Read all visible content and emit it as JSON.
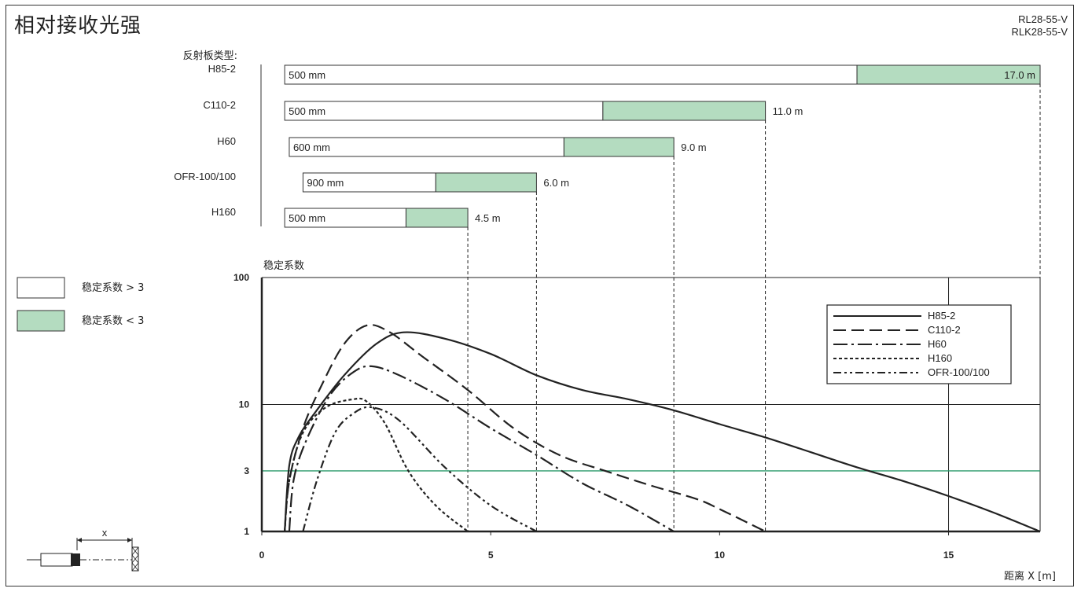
{
  "title": "相对接收光强",
  "models": [
    "RL28-55-V",
    "RLK28-55-V"
  ],
  "reflector_header": "反射板类型:",
  "colors": {
    "stable_fill": "#ffffff",
    "unstable_fill": "#b4dcc0",
    "threshold_line": "#2a9a6a",
    "line": "#222222"
  },
  "reflectors": [
    {
      "name": "H85-2",
      "min_label": "500 mm",
      "min_m": 0.5,
      "stable_end_m": 13.0,
      "max_m": 17.0,
      "max_label": "17.0 m"
    },
    {
      "name": "C110-2",
      "min_label": "500 mm",
      "min_m": 0.5,
      "stable_end_m": 7.45,
      "max_m": 11.0,
      "max_label": "11.0 m"
    },
    {
      "name": "H60",
      "min_label": "600 mm",
      "min_m": 0.6,
      "stable_end_m": 6.6,
      "max_m": 9.0,
      "max_label": "9.0 m"
    },
    {
      "name": "OFR-100/100",
      "min_label": "900 mm",
      "min_m": 0.9,
      "stable_end_m": 3.8,
      "max_m": 6.0,
      "max_label": "6.0 m"
    },
    {
      "name": "H160",
      "min_label": "500 mm",
      "min_m": 0.5,
      "stable_end_m": 3.15,
      "max_m": 4.5,
      "max_label": "4.5 m"
    }
  ],
  "legend_boxes": [
    {
      "label": "稳定系数 > 3",
      "kind": "stable"
    },
    {
      "label": "稳定系数 < 3",
      "kind": "unstable"
    }
  ],
  "chart_data": {
    "type": "line",
    "ylabel": "稳定系数",
    "xlabel": "距离 X [m]",
    "xlim": [
      0,
      17
    ],
    "ylim": [
      1,
      100
    ],
    "yscale": "log",
    "xticks": [
      0,
      5,
      10,
      15
    ],
    "yticks": [
      100,
      10,
      3,
      1
    ],
    "threshold": 3,
    "grid": "x=15, x=17, y=10",
    "legend_position": "top-right",
    "series": [
      {
        "name": "H85-2",
        "style": "solid",
        "x": [
          0.5,
          0.6,
          0.8,
          1.2,
          1.8,
          2.5,
          3.1,
          4.0,
          5.0,
          6.0,
          7.0,
          8.0,
          9.0,
          10.0,
          11.0,
          12.0,
          13.0,
          14.0,
          15.0,
          16.0,
          17.0
        ],
        "y": [
          1,
          3.3,
          5.5,
          9.0,
          17,
          30,
          37,
          33,
          25,
          17,
          13,
          11,
          9,
          7,
          5.5,
          4.2,
          3.2,
          2.5,
          1.9,
          1.4,
          1.0
        ]
      },
      {
        "name": "C110-2",
        "style": "long-dash",
        "x": [
          0.5,
          0.6,
          0.9,
          1.3,
          1.8,
          2.3,
          2.8,
          3.5,
          4.5,
          5.5,
          6.5,
          7.5,
          8.5,
          9.5,
          10.0,
          11.0
        ],
        "y": [
          1,
          2.5,
          6.5,
          14,
          30,
          42,
          37,
          24,
          13,
          6.5,
          4,
          3,
          2.3,
          1.8,
          1.5,
          1.0
        ]
      },
      {
        "name": "H60",
        "style": "dash-dot",
        "x": [
          0.6,
          0.7,
          1.0,
          1.5,
          2.0,
          2.4,
          3.0,
          4.0,
          5.0,
          6.0,
          7.0,
          8.0,
          9.0
        ],
        "y": [
          1,
          2.6,
          5.5,
          12,
          18,
          20,
          17,
          11,
          6.5,
          4,
          2.4,
          1.6,
          1.0
        ]
      },
      {
        "name": "H160",
        "style": "short-dash",
        "x": [
          0.5,
          0.6,
          0.9,
          1.4,
          2.0,
          2.3,
          2.7,
          3.2,
          3.8,
          4.5
        ],
        "y": [
          1,
          2.5,
          6,
          9.5,
          11,
          10.5,
          7,
          3,
          1.6,
          1.0
        ]
      },
      {
        "name": "OFR-100/100",
        "style": "dash-dot-dot",
        "x": [
          0.9,
          1.2,
          1.6,
          2.0,
          2.4,
          3.0,
          4.0,
          5.0,
          6.0
        ],
        "y": [
          1,
          2.5,
          6,
          8.5,
          9.5,
          7.5,
          3.2,
          1.6,
          1.0
        ]
      }
    ]
  },
  "diagram_label": "x"
}
